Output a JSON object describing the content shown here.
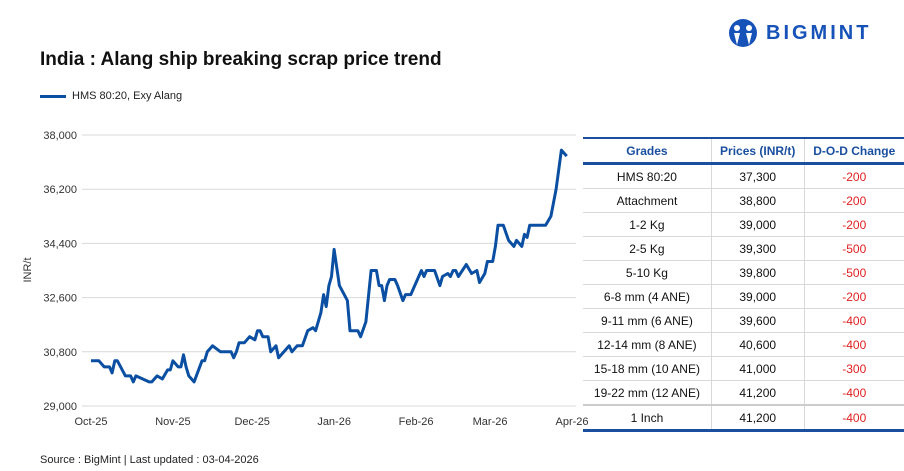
{
  "brand": {
    "name": "BIGMINT",
    "color": "#1652b8"
  },
  "chart_data": {
    "type": "line",
    "title": "India : Alang ship breaking scrap price trend",
    "ylabel": "INR/t",
    "xlabel": "",
    "ylim": [
      29000,
      38000
    ],
    "yticks": [
      "29,000",
      "30,800",
      "32,600",
      "34,400",
      "36,200",
      "38,000"
    ],
    "ytick_values": [
      29000,
      30800,
      32600,
      34400,
      36200,
      38000
    ],
    "xlim": [
      "2025-10-01",
      "2026-04-01"
    ],
    "xticks": [
      "Oct-25",
      "Nov-25",
      "Dec-25",
      "Jan-26",
      "Feb-26",
      "Mar-26",
      "Apr-26"
    ],
    "xtick_dates": [
      "2025-10-01",
      "2025-11-01",
      "2025-12-01",
      "2026-01-01",
      "2026-02-01",
      "2026-03-01",
      "2026-04-01"
    ],
    "grid": "horizontal",
    "legend_placement": "top-left",
    "series": [
      {
        "name": "HMS 80:20, Exy Alang",
        "color": "#0b4fa2",
        "points": [
          [
            "2025-10-01",
            30500
          ],
          [
            "2025-10-04",
            30500
          ],
          [
            "2025-10-06",
            30300
          ],
          [
            "2025-10-08",
            30300
          ],
          [
            "2025-10-09",
            30100
          ],
          [
            "2025-10-10",
            30500
          ],
          [
            "2025-10-11",
            30500
          ],
          [
            "2025-10-14",
            30000
          ],
          [
            "2025-10-16",
            30000
          ],
          [
            "2025-10-17",
            29800
          ],
          [
            "2025-10-18",
            30000
          ],
          [
            "2025-10-23",
            29800
          ],
          [
            "2025-10-24",
            29800
          ],
          [
            "2025-10-26",
            30000
          ],
          [
            "2025-10-28",
            29900
          ],
          [
            "2025-10-30",
            30200
          ],
          [
            "2025-10-31",
            30200
          ],
          [
            "2025-11-01",
            30500
          ],
          [
            "2025-11-03",
            30300
          ],
          [
            "2025-11-04",
            30300
          ],
          [
            "2025-11-05",
            30700
          ],
          [
            "2025-11-06",
            30300
          ],
          [
            "2025-11-07",
            30000
          ],
          [
            "2025-11-09",
            29800
          ],
          [
            "2025-11-12",
            30500
          ],
          [
            "2025-11-13",
            30500
          ],
          [
            "2025-11-14",
            30800
          ],
          [
            "2025-11-16",
            31000
          ],
          [
            "2025-11-19",
            30800
          ],
          [
            "2025-11-23",
            30800
          ],
          [
            "2025-11-24",
            30600
          ],
          [
            "2025-11-25",
            30800
          ],
          [
            "2025-11-26",
            31100
          ],
          [
            "2025-11-28",
            31100
          ],
          [
            "2025-11-30",
            31300
          ],
          [
            "2025-12-02",
            31200
          ],
          [
            "2025-12-03",
            31500
          ],
          [
            "2025-12-04",
            31500
          ],
          [
            "2025-12-05",
            31300
          ],
          [
            "2025-12-07",
            31300
          ],
          [
            "2025-12-08",
            30800
          ],
          [
            "2025-12-10",
            31000
          ],
          [
            "2025-12-11",
            30600
          ],
          [
            "2025-12-15",
            31000
          ],
          [
            "2025-12-16",
            30800
          ],
          [
            "2025-12-18",
            31000
          ],
          [
            "2025-12-20",
            31000
          ],
          [
            "2025-12-22",
            31500
          ],
          [
            "2025-12-24",
            31600
          ],
          [
            "2025-12-25",
            31500
          ],
          [
            "2025-12-27",
            32100
          ],
          [
            "2025-12-28",
            32700
          ],
          [
            "2025-12-29",
            32300
          ],
          [
            "2025-12-30",
            33000
          ],
          [
            "2025-12-31",
            33300
          ],
          [
            "2026-01-01",
            34200
          ],
          [
            "2026-01-03",
            33000
          ],
          [
            "2026-01-06",
            32500
          ],
          [
            "2026-01-07",
            31500
          ],
          [
            "2026-01-10",
            31500
          ],
          [
            "2026-01-11",
            31300
          ],
          [
            "2026-01-13",
            31800
          ],
          [
            "2026-01-15",
            33500
          ],
          [
            "2026-01-17",
            33500
          ],
          [
            "2026-01-18",
            33000
          ],
          [
            "2026-01-19",
            33000
          ],
          [
            "2026-01-20",
            32500
          ],
          [
            "2026-01-21",
            33000
          ],
          [
            "2026-01-22",
            33200
          ],
          [
            "2026-01-24",
            33200
          ],
          [
            "2026-01-25",
            33000
          ],
          [
            "2026-01-27",
            32500
          ],
          [
            "2026-01-28",
            32700
          ],
          [
            "2026-01-30",
            32700
          ],
          [
            "2026-01-31",
            32900
          ],
          [
            "2026-02-03",
            33500
          ],
          [
            "2026-02-04",
            33300
          ],
          [
            "2026-02-05",
            33500
          ],
          [
            "2026-02-08",
            33500
          ],
          [
            "2026-02-10",
            33000
          ],
          [
            "2026-02-11",
            33300
          ],
          [
            "2026-02-13",
            33400
          ],
          [
            "2026-02-14",
            33300
          ],
          [
            "2026-02-15",
            33500
          ],
          [
            "2026-02-16",
            33500
          ],
          [
            "2026-02-17",
            33300
          ],
          [
            "2026-02-20",
            33700
          ],
          [
            "2026-02-22",
            33400
          ],
          [
            "2026-02-24",
            33500
          ],
          [
            "2026-02-25",
            33100
          ],
          [
            "2026-02-27",
            33400
          ],
          [
            "2026-02-28",
            33800
          ],
          [
            "2026-03-02",
            33800
          ],
          [
            "2026-03-03",
            34300
          ],
          [
            "2026-03-04",
            35000
          ],
          [
            "2026-03-06",
            35000
          ],
          [
            "2026-03-08",
            34500
          ],
          [
            "2026-03-10",
            34300
          ],
          [
            "2026-03-11",
            34500
          ],
          [
            "2026-03-13",
            34300
          ],
          [
            "2026-03-14",
            34700
          ],
          [
            "2026-03-15",
            34600
          ],
          [
            "2026-03-16",
            35000
          ],
          [
            "2026-03-22",
            35000
          ],
          [
            "2026-03-24",
            35300
          ],
          [
            "2026-03-26",
            36200
          ],
          [
            "2026-03-28",
            37500
          ],
          [
            "2026-03-30",
            37300
          ]
        ]
      }
    ]
  },
  "table": {
    "headers": [
      "Grades",
      "Prices (INR/t)",
      "D-O-D Change"
    ],
    "rows": [
      [
        "HMS 80:20",
        "37,300",
        "-200"
      ],
      [
        "Attachment",
        "38,800",
        "-200"
      ],
      [
        "1-2 Kg",
        "39,000",
        "-200"
      ],
      [
        "2-5 Kg",
        "39,300",
        "-500"
      ],
      [
        "5-10 Kg",
        "39,800",
        "-500"
      ],
      [
        "6-8 mm (4 ANE)",
        "39,000",
        "-200"
      ],
      [
        "9-11 mm (6 ANE)",
        "39,600",
        "-400"
      ],
      [
        "12-14 mm (8 ANE)",
        "40,600",
        "-400"
      ],
      [
        "15-18 mm (10 ANE)",
        "41,000",
        "-300"
      ],
      [
        "19-22 mm (12 ANE)",
        "41,200",
        "-400"
      ],
      [
        "1 Inch",
        "41,200",
        "-400"
      ]
    ],
    "negative_color": "#e02020",
    "header_color": "#1a4fa0"
  },
  "source": "Source : BigMint | Last updated : 03-04-2026"
}
